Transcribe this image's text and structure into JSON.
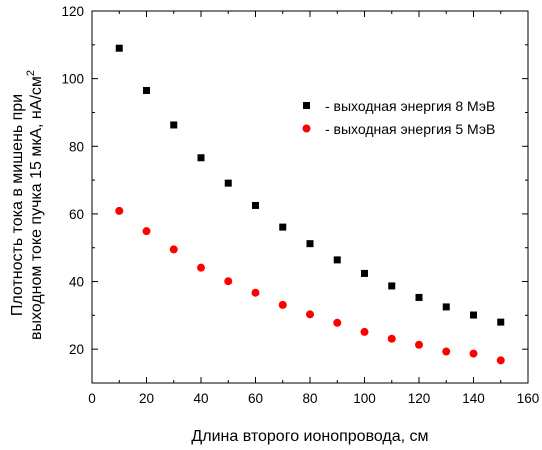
{
  "chart_data": {
    "type": "scatter",
    "xlabel": "Длина второго ионопровода, см",
    "ylabel_line1": "Плотность тока в мишень при",
    "ylabel_line2": "выходном токе пучка 15 мкА, нА/см",
    "ylabel_superscript": "2",
    "xlim": [
      0,
      160
    ],
    "ylim": [
      10,
      120
    ],
    "xticks": [
      0,
      20,
      40,
      60,
      80,
      100,
      120,
      140,
      160
    ],
    "yticks": [
      20,
      40,
      60,
      80,
      100,
      120
    ],
    "legend_position": "upper-right-center",
    "series": [
      {
        "name": "- выходная энергия 8 МэВ",
        "marker": "square",
        "color": "#000000",
        "x": [
          10,
          20,
          30,
          40,
          50,
          60,
          70,
          80,
          90,
          100,
          110,
          120,
          130,
          140,
          150
        ],
        "y": [
          109,
          96.5,
          86.3,
          76.6,
          69.1,
          62.5,
          56.1,
          51.2,
          46.4,
          42.4,
          38.7,
          35.3,
          32.5,
          30.1,
          28
        ]
      },
      {
        "name": "- выходная энергия 5 МэВ",
        "marker": "circle",
        "color": "#ff0000",
        "x": [
          10,
          20,
          30,
          40,
          50,
          60,
          70,
          80,
          90,
          100,
          110,
          120,
          130,
          140,
          150
        ],
        "y": [
          60.9,
          54.9,
          49.5,
          44.1,
          40.1,
          36.7,
          33.1,
          30.3,
          27.8,
          25.1,
          23.1,
          21.3,
          19.3,
          18.7,
          16.7
        ]
      }
    ]
  }
}
